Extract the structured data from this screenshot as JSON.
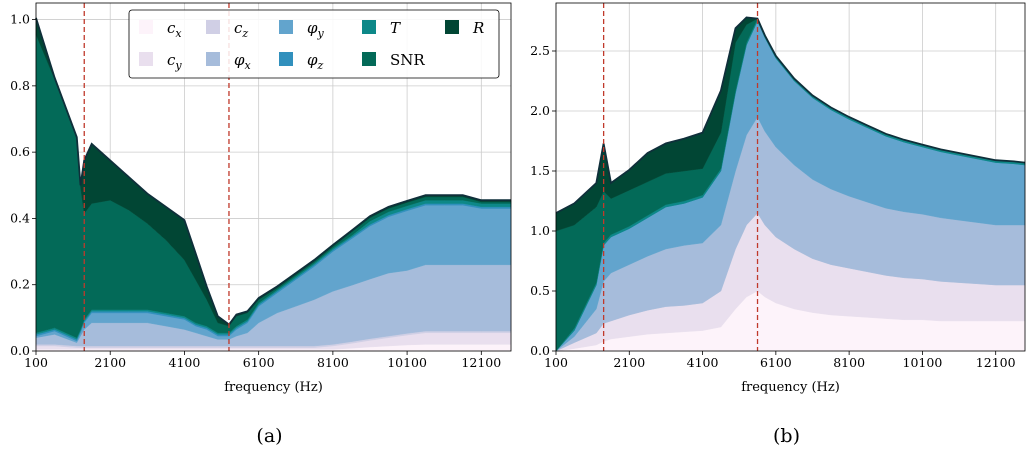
{
  "colors": {
    "c_x": "#fdf3fa",
    "c_y": "#e9dfee",
    "c_z": "#d0cfe5",
    "phi_x": "#a6bcdb",
    "phi_y": "#62a4cd",
    "phi_z": "#3190bd",
    "T": "#0d8888",
    "SNR": "#036a58",
    "R": "#014634",
    "edge": "#0f2f3a",
    "vline": "#c0392b",
    "grid": "#cccccc"
  },
  "legend": {
    "entries": [
      {
        "key": "c_x",
        "label": "c",
        "sub": "x"
      },
      {
        "key": "c_y",
        "label": "c",
        "sub": "y"
      },
      {
        "key": "c_z",
        "label": "c",
        "sub": "z"
      },
      {
        "key": "phi_x",
        "label": "φ",
        "sub": "x"
      },
      {
        "key": "phi_y",
        "label": "φ",
        "sub": "y"
      },
      {
        "key": "phi_z",
        "label": "φ",
        "sub": "z"
      },
      {
        "key": "T",
        "label": "T",
        "sub": ""
      },
      {
        "key": "SNR",
        "label": "SNR",
        "sub": ""
      },
      {
        "key": "R",
        "label": "R",
        "sub": ""
      }
    ]
  },
  "chart_data": [
    {
      "type": "area",
      "stacked": true,
      "panel_label": "(a)",
      "xlabel": "frequency (Hz)",
      "ylabel": "",
      "xlim": [
        100,
        12900
      ],
      "ylim": [
        0,
        1.05
      ],
      "xticks": [
        100,
        2100,
        4100,
        6100,
        8100,
        10100,
        12100
      ],
      "yticks": [
        0.0,
        0.2,
        0.4,
        0.6,
        0.8,
        1.0
      ],
      "ytick_labels": [
        "0.0",
        "0.2",
        "0.4",
        "0.6",
        "0.8",
        "1.0"
      ],
      "grid": true,
      "legend_position": "top-right",
      "vlines": [
        1400,
        5300
      ],
      "x": [
        100,
        600,
        1200,
        1300,
        1400,
        1600,
        2100,
        2600,
        3100,
        3600,
        4100,
        4400,
        4700,
        5000,
        5300,
        5500,
        5800,
        6100,
        6600,
        7100,
        7600,
        8100,
        8600,
        9100,
        9600,
        10100,
        10600,
        11100,
        11600,
        12100,
        12600,
        12900
      ],
      "series": [
        {
          "name": "c_x",
          "values": [
            0.005,
            0.005,
            0.005,
            0.005,
            0.005,
            0.005,
            0.005,
            0.005,
            0.005,
            0.005,
            0.005,
            0.005,
            0.005,
            0.005,
            0.005,
            0.005,
            0.005,
            0.005,
            0.005,
            0.005,
            0.005,
            0.005,
            0.008,
            0.012,
            0.015,
            0.018,
            0.02,
            0.02,
            0.02,
            0.02,
            0.02,
            0.02
          ]
        },
        {
          "name": "c_y",
          "values": [
            0.01,
            0.01,
            0.005,
            0.005,
            0.005,
            0.005,
            0.005,
            0.005,
            0.005,
            0.005,
            0.005,
            0.005,
            0.005,
            0.005,
            0.005,
            0.005,
            0.005,
            0.005,
            0.005,
            0.005,
            0.005,
            0.01,
            0.015,
            0.02,
            0.025,
            0.03,
            0.035,
            0.035,
            0.035,
            0.035,
            0.035,
            0.035
          ]
        },
        {
          "name": "c_z",
          "values": [
            0.005,
            0.005,
            0.005,
            0.005,
            0.005,
            0.005,
            0.005,
            0.005,
            0.005,
            0.005,
            0.005,
            0.005,
            0.005,
            0.005,
            0.005,
            0.005,
            0.005,
            0.005,
            0.005,
            0.005,
            0.005,
            0.005,
            0.005,
            0.005,
            0.005,
            0.005,
            0.005,
            0.005,
            0.005,
            0.005,
            0.005,
            0.005
          ]
        },
        {
          "name": "φ_x",
          "values": [
            0.02,
            0.03,
            0.01,
            0.03,
            0.05,
            0.07,
            0.07,
            0.07,
            0.07,
            0.06,
            0.05,
            0.04,
            0.03,
            0.02,
            0.02,
            0.03,
            0.04,
            0.07,
            0.1,
            0.12,
            0.14,
            0.16,
            0.17,
            0.18,
            0.19,
            0.19,
            0.2,
            0.2,
            0.2,
            0.2,
            0.2,
            0.2
          ]
        },
        {
          "name": "φ_y",
          "values": [
            0.005,
            0.01,
            0.005,
            0.01,
            0.02,
            0.03,
            0.03,
            0.03,
            0.03,
            0.03,
            0.03,
            0.02,
            0.02,
            0.01,
            0.01,
            0.02,
            0.03,
            0.05,
            0.06,
            0.08,
            0.1,
            0.12,
            0.14,
            0.16,
            0.17,
            0.18,
            0.18,
            0.18,
            0.18,
            0.17,
            0.17,
            0.17
          ]
        },
        {
          "name": "φ_z",
          "values": [
            0.005,
            0.005,
            0.005,
            0.005,
            0.005,
            0.005,
            0.005,
            0.005,
            0.005,
            0.005,
            0.005,
            0.005,
            0.005,
            0.005,
            0.005,
            0.005,
            0.005,
            0.005,
            0.005,
            0.005,
            0.005,
            0.005,
            0.005,
            0.005,
            0.005,
            0.005,
            0.005,
            0.005,
            0.005,
            0.005,
            0.005,
            0.005
          ]
        },
        {
          "name": "T",
          "values": [
            0.005,
            0.005,
            0.005,
            0.005,
            0.005,
            0.005,
            0.005,
            0.005,
            0.005,
            0.005,
            0.005,
            0.005,
            0.005,
            0.005,
            0.005,
            0.005,
            0.005,
            0.005,
            0.005,
            0.005,
            0.005,
            0.005,
            0.005,
            0.01,
            0.01,
            0.01,
            0.01,
            0.01,
            0.01,
            0.01,
            0.01,
            0.01
          ]
        },
        {
          "name": "SNR",
          "values": [
            0.9,
            0.75,
            0.6,
            0.43,
            0.32,
            0.32,
            0.33,
            0.3,
            0.26,
            0.22,
            0.17,
            0.13,
            0.08,
            0.03,
            0.02,
            0.03,
            0.02,
            0.01,
            0.005,
            0.005,
            0.005,
            0.005,
            0.01,
            0.01,
            0.01,
            0.01,
            0.01,
            0.01,
            0.01,
            0.005,
            0.005,
            0.005
          ]
        },
        {
          "name": "R",
          "values": [
            0.05,
            0.005,
            0.005,
            0.005,
            0.16,
            0.18,
            0.12,
            0.1,
            0.09,
            0.1,
            0.12,
            0.08,
            0.04,
            0.02,
            0.005,
            0.005,
            0.005,
            0.005,
            0.005,
            0.005,
            0.005,
            0.005,
            0.005,
            0.005,
            0.005,
            0.005,
            0.005,
            0.005,
            0.005,
            0.005,
            0.005,
            0.005
          ]
        }
      ]
    },
    {
      "type": "area",
      "stacked": true,
      "panel_label": "(b)",
      "xlabel": "frequency (Hz)",
      "ylabel": "",
      "xlim": [
        100,
        12900
      ],
      "ylim": [
        0,
        2.9
      ],
      "xticks": [
        100,
        2100,
        4100,
        6100,
        8100,
        10100,
        12100
      ],
      "yticks": [
        0.0,
        0.5,
        1.0,
        1.5,
        2.0,
        2.5
      ],
      "ytick_labels": [
        "0.0",
        "0.5",
        "1.0",
        "1.5",
        "2.0",
        "2.5"
      ],
      "grid": true,
      "vlines": [
        1400,
        5600
      ],
      "x": [
        100,
        600,
        1200,
        1400,
        1600,
        2100,
        2600,
        3100,
        3600,
        4100,
        4600,
        5000,
        5300,
        5600,
        5800,
        6100,
        6600,
        7100,
        7600,
        8100,
        8600,
        9100,
        9600,
        10100,
        10600,
        11100,
        11600,
        12100,
        12600,
        12900
      ],
      "series": [
        {
          "name": "c_x",
          "values": [
            0.0,
            0.02,
            0.05,
            0.08,
            0.1,
            0.12,
            0.14,
            0.15,
            0.16,
            0.17,
            0.2,
            0.35,
            0.45,
            0.5,
            0.45,
            0.4,
            0.35,
            0.32,
            0.3,
            0.29,
            0.28,
            0.27,
            0.26,
            0.26,
            0.25,
            0.25,
            0.25,
            0.25,
            0.25,
            0.25
          ]
        },
        {
          "name": "c_y",
          "values": [
            0.0,
            0.05,
            0.1,
            0.15,
            0.15,
            0.18,
            0.2,
            0.22,
            0.22,
            0.23,
            0.3,
            0.5,
            0.6,
            0.65,
            0.6,
            0.55,
            0.5,
            0.45,
            0.42,
            0.4,
            0.38,
            0.36,
            0.35,
            0.34,
            0.33,
            0.32,
            0.31,
            0.3,
            0.3,
            0.3
          ]
        },
        {
          "name": "c_z",
          "values": [
            0.0,
            0.0,
            0.0,
            0.0,
            0.0,
            0.0,
            0.0,
            0.0,
            0.0,
            0.0,
            0.0,
            0.0,
            0.0,
            0.0,
            0.0,
            0.0,
            0.0,
            0.0,
            0.0,
            0.0,
            0.0,
            0.0,
            0.0,
            0.0,
            0.0,
            0.0,
            0.0,
            0.0,
            0.0,
            0.0
          ]
        },
        {
          "name": "φ_x",
          "values": [
            0.0,
            0.05,
            0.2,
            0.35,
            0.4,
            0.42,
            0.45,
            0.48,
            0.5,
            0.5,
            0.55,
            0.65,
            0.75,
            0.8,
            0.78,
            0.75,
            0.7,
            0.66,
            0.63,
            0.6,
            0.58,
            0.56,
            0.55,
            0.54,
            0.53,
            0.52,
            0.51,
            0.5,
            0.5,
            0.5
          ]
        },
        {
          "name": "φ_y",
          "values": [
            0.0,
            0.05,
            0.2,
            0.3,
            0.3,
            0.3,
            0.32,
            0.35,
            0.35,
            0.38,
            0.45,
            0.65,
            0.75,
            0.8,
            0.78,
            0.74,
            0.7,
            0.68,
            0.66,
            0.64,
            0.62,
            0.6,
            0.58,
            0.56,
            0.55,
            0.54,
            0.53,
            0.52,
            0.51,
            0.5
          ]
        },
        {
          "name": "φ_z",
          "values": [
            0.0,
            0.0,
            0.0,
            0.0,
            0.0,
            0.0,
            0.0,
            0.0,
            0.0,
            0.0,
            0.0,
            0.0,
            0.0,
            0.0,
            0.0,
            0.0,
            0.0,
            0.0,
            0.0,
            0.0,
            0.0,
            0.0,
            0.0,
            0.0,
            0.0,
            0.0,
            0.0,
            0.0,
            0.0,
            0.0
          ]
        },
        {
          "name": "T",
          "values": [
            0.0,
            0.02,
            0.02,
            0.02,
            0.02,
            0.02,
            0.02,
            0.02,
            0.02,
            0.02,
            0.02,
            0.02,
            0.02,
            0.02,
            0.02,
            0.02,
            0.02,
            0.02,
            0.02,
            0.02,
            0.02,
            0.02,
            0.02,
            0.02,
            0.02,
            0.02,
            0.02,
            0.02,
            0.02,
            0.02
          ]
        },
        {
          "name": "SNR",
          "values": [
            1.0,
            0.86,
            0.63,
            0.43,
            0.3,
            0.3,
            0.28,
            0.26,
            0.25,
            0.22,
            0.3,
            0.4,
            0.15,
            0.0,
            0.0,
            0.0,
            0.0,
            0.0,
            0.0,
            0.0,
            0.0,
            0.0,
            0.0,
            0.0,
            0.0,
            0.0,
            0.0,
            0.0,
            0.0,
            0.0
          ]
        },
        {
          "name": "R",
          "values": [
            0.15,
            0.18,
            0.2,
            0.4,
            0.13,
            0.17,
            0.24,
            0.25,
            0.27,
            0.3,
            0.35,
            0.12,
            0.06,
            0.0,
            0.0,
            0.0,
            0.0,
            0.0,
            0.0,
            0.0,
            0.0,
            0.0,
            0.0,
            0.0,
            0.0,
            0.0,
            0.0,
            0.0,
            0.0,
            0.0
          ]
        }
      ]
    }
  ]
}
